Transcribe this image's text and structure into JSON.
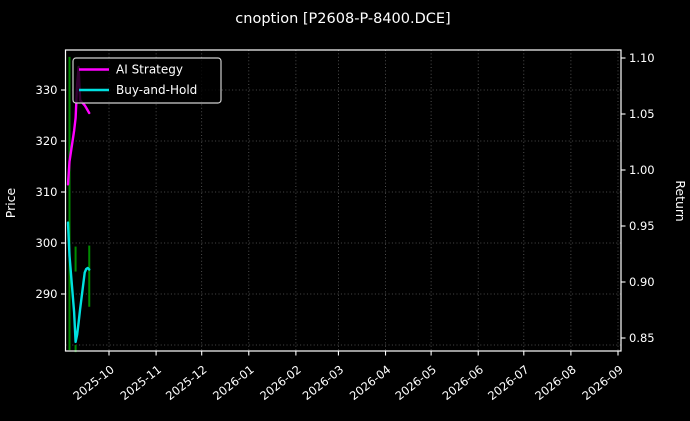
{
  "window": {
    "background": "#000000",
    "text_color": "#ffffff"
  },
  "chart_data": {
    "type": "line",
    "title": "cnoption [P2608-P-8400.DCE]",
    "ylabel": "Price",
    "ylabel_right": "Return",
    "xlabel": "",
    "grid": true,
    "legend_position": "upper-left",
    "left_axis": {
      "ticks": [
        330,
        320,
        310,
        300,
        290
      ],
      "grid_prices": [
        330,
        320,
        310,
        300,
        290,
        280
      ]
    },
    "right_axis": {
      "ticks": [
        "1.10",
        "1.05",
        "1.00",
        "0.95",
        "0.90",
        "0.85"
      ]
    },
    "x_axis": {
      "tick_labels": [
        "2025-10",
        "2025-11",
        "2025-12",
        "2026-01",
        "2026-02",
        "2026-03",
        "2026-04",
        "2026-05",
        "2026-06",
        "2026-07",
        "2026-08",
        "2026-09"
      ],
      "tick_dates": [
        "2025-10-01",
        "2025-11-01",
        "2025-12-01",
        "2026-01-01",
        "2026-02-01",
        "2026-03-01",
        "2026-04-01",
        "2026-05-01",
        "2026-06-01",
        "2026-07-01",
        "2026-08-01",
        "2026-09-01"
      ],
      "label_rotation_deg": -38
    },
    "series": [
      {
        "name": "AI Strategy",
        "color": "#ff00ff",
        "width": 2.4,
        "points": [
          [
            "2025-09-04",
            311.5
          ],
          [
            "2025-09-05",
            316.0
          ],
          [
            "2025-09-08",
            322.0
          ],
          [
            "2025-09-09",
            324.5
          ],
          [
            "2025-09-10",
            331.0
          ],
          [
            "2025-09-11",
            334.5
          ],
          [
            "2025-09-12",
            328.0
          ],
          [
            "2025-09-15",
            327.0
          ],
          [
            "2025-09-16",
            326.5
          ],
          [
            "2025-09-17",
            326.0
          ],
          [
            "2025-09-18",
            325.5
          ]
        ]
      },
      {
        "name": "Buy-and-Hold",
        "color": "#00e0e0",
        "width": 2.4,
        "points": [
          [
            "2025-09-04",
            304.0
          ],
          [
            "2025-09-05",
            297.5
          ],
          [
            "2025-09-08",
            286.5
          ],
          [
            "2025-09-09",
            280.6
          ],
          [
            "2025-09-10",
            282.0
          ],
          [
            "2025-09-11",
            284.4
          ],
          [
            "2025-09-12",
            287.0
          ],
          [
            "2025-09-15",
            294.2
          ],
          [
            "2025-09-16",
            294.9
          ],
          [
            "2025-09-17",
            295.1
          ],
          [
            "2025-09-18",
            294.8
          ]
        ]
      }
    ],
    "trade_markers": {
      "color": "#008b00",
      "width": 2,
      "vlines": [
        {
          "date": "2025-09-05",
          "price_from": 336.5,
          "price_to": 279.0
        },
        {
          "date": "2025-09-09",
          "price_from": 299.3,
          "price_to": 294.4
        },
        {
          "date": "2025-09-09",
          "price_from": 280.0,
          "price_to": 278.6
        },
        {
          "date": "2025-09-18",
          "price_from": 299.5,
          "price_to": 287.5
        }
      ]
    },
    "style": {
      "grid_color": "rgba(255,255,255,0.38)",
      "spine_color": "#ffffff",
      "legend_border": "#cfcfcf",
      "legend_fill": "rgba(0,0,0,0.8)"
    }
  }
}
